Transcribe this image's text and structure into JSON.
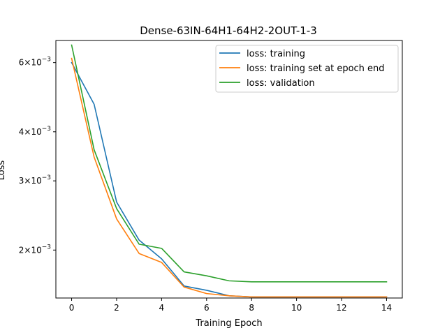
{
  "chart_data": {
    "type": "line",
    "title": "Dense-63IN-64H1-64H2-2OUT-1-3",
    "xlabel": "Training Epoch",
    "ylabel": "Loss",
    "xlim": [
      -0.7,
      14.7
    ],
    "ylim": [
      0.00151,
      0.00683
    ],
    "yscale": "log",
    "grid": false,
    "legend_position": "top-right",
    "x_ticks": [
      0,
      2,
      4,
      6,
      8,
      10,
      12,
      14
    ],
    "y_ticks": [
      {
        "value": 0.002,
        "mantissa": "2",
        "label": "2 × 10^-3"
      },
      {
        "value": 0.003,
        "mantissa": "3",
        "label": "3 × 10^-3"
      },
      {
        "value": 0.004,
        "mantissa": "4",
        "label": "4 × 10^-3"
      },
      {
        "value": 0.006,
        "mantissa": "6",
        "label": "6 × 10^-3"
      }
    ],
    "x": [
      0,
      1,
      2,
      3,
      4,
      5,
      6,
      7,
      8,
      9,
      10,
      11,
      12,
      13,
      14
    ],
    "series": [
      {
        "name": "loss: training",
        "color": "#1f77b4",
        "values": [
          0.006,
          0.0047,
          0.00265,
          0.00212,
          0.0019,
          0.00162,
          0.00158,
          0.00153,
          0.00152,
          0.00152,
          0.00152,
          0.00152,
          0.00152,
          0.00152,
          0.00152
        ]
      },
      {
        "name": "loss: training set at epoch end",
        "color": "#ff7f0e",
        "values": [
          0.00615,
          0.00345,
          0.0024,
          0.00196,
          0.00186,
          0.00161,
          0.00155,
          0.00153,
          0.00152,
          0.00152,
          0.00152,
          0.00152,
          0.00152,
          0.00152,
          0.00152
        ]
      },
      {
        "name": "loss: validation",
        "color": "#2ca02c",
        "values": [
          0.00665,
          0.0036,
          0.00255,
          0.00207,
          0.00202,
          0.00176,
          0.00172,
          0.00167,
          0.00166,
          0.00166,
          0.00166,
          0.00166,
          0.00166,
          0.00166,
          0.00166
        ]
      }
    ]
  }
}
